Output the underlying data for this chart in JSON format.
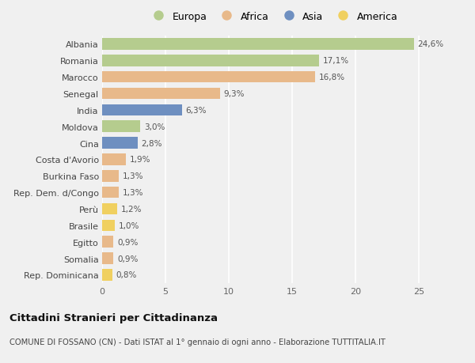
{
  "countries": [
    "Albania",
    "Romania",
    "Marocco",
    "Senegal",
    "India",
    "Moldova",
    "Cina",
    "Costa d'Avorio",
    "Burkina Faso",
    "Rep. Dem. d/Congo",
    "Perù",
    "Brasile",
    "Egitto",
    "Somalia",
    "Rep. Dominicana"
  ],
  "values": [
    24.6,
    17.1,
    16.8,
    9.3,
    6.3,
    3.0,
    2.8,
    1.9,
    1.3,
    1.3,
    1.2,
    1.0,
    0.9,
    0.9,
    0.8
  ],
  "labels": [
    "24,6%",
    "17,1%",
    "16,8%",
    "9,3%",
    "6,3%",
    "3,0%",
    "2,8%",
    "1,9%",
    "1,3%",
    "1,3%",
    "1,2%",
    "1,0%",
    "0,9%",
    "0,9%",
    "0,8%"
  ],
  "continents": [
    "Europa",
    "Europa",
    "Africa",
    "Africa",
    "Asia",
    "Europa",
    "Asia",
    "Africa",
    "Africa",
    "Africa",
    "America",
    "America",
    "Africa",
    "Africa",
    "America"
  ],
  "colors": {
    "Europa": "#b5cc8e",
    "Africa": "#e8b98a",
    "Asia": "#6e8fc0",
    "America": "#f0d060"
  },
  "xlim": [
    0,
    27
  ],
  "xticks": [
    0,
    5,
    10,
    15,
    20,
    25
  ],
  "background_color": "#f0f0f0",
  "plot_bg_color": "#f0f0f0",
  "title": "Cittadini Stranieri per Cittadinanza",
  "subtitle": "COMUNE DI FOSSANO (CN) - Dati ISTAT al 1° gennaio di ogni anno - Elaborazione TUTTITALIA.IT",
  "bar_height": 0.7,
  "legend_order": [
    "Europa",
    "Africa",
    "Asia",
    "America"
  ]
}
